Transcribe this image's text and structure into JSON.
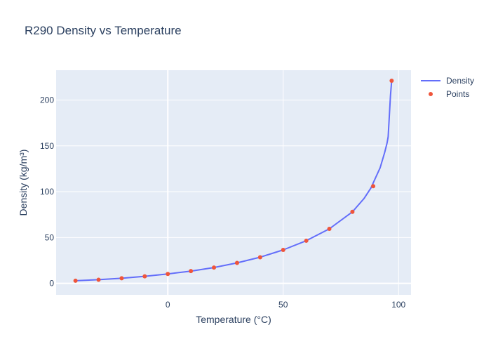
{
  "chart_data": {
    "type": "line",
    "title": "R290 Density vs Temperature",
    "xlabel": "Temperature (°C)",
    "ylabel": "Density (kg/m³)",
    "xlim": [
      -48.4,
      105.4
    ],
    "ylim": [
      -12.5,
      232.5
    ],
    "xticks": [
      0,
      50,
      100
    ],
    "yticks": [
      0,
      50,
      100,
      150,
      200
    ],
    "grid": true,
    "legend_position": "top-right",
    "series": [
      {
        "name": "Density",
        "mode": "lines",
        "color": "#636efa",
        "x": [
          -40,
          -30,
          -20,
          -10,
          0,
          10,
          20,
          30,
          40,
          50,
          60,
          70,
          80,
          85,
          88,
          90,
          92,
          94,
          95,
          95.5,
          96.5,
          97
        ],
        "y": [
          2.9,
          4.0,
          5.6,
          7.7,
          10.3,
          13.4,
          17.3,
          22.3,
          28.5,
          36.5,
          46.5,
          59.5,
          78.0,
          92.5,
          104.0,
          115.0,
          126.0,
          143.0,
          153.0,
          160.0,
          205.0,
          221.0
        ]
      },
      {
        "name": "Points",
        "mode": "markers",
        "color": "#ef553b",
        "x": [
          -40,
          -30,
          -20,
          -10,
          0,
          10,
          20,
          30,
          40,
          50,
          60,
          70,
          80,
          89,
          97
        ],
        "y": [
          2.9,
          4.0,
          5.6,
          7.7,
          10.3,
          13.4,
          17.3,
          22.3,
          28.5,
          36.5,
          46.5,
          59.5,
          78.0,
          106.0,
          221.0
        ]
      }
    ]
  }
}
